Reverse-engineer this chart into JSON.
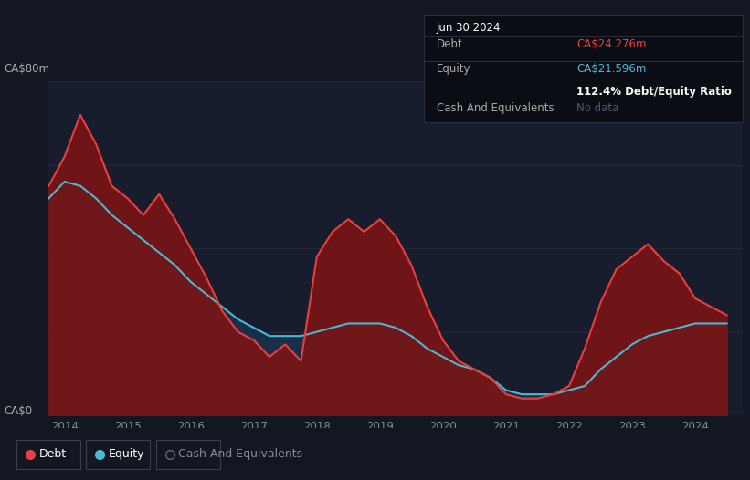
{
  "bg_color": "#131722",
  "plot_bg_color": "#181d2d",
  "grid_color": "#252a3a",
  "debt_color": "#e84040",
  "equity_color": "#4db8d4",
  "debt_fill": "#7a1515",
  "equity_fill": "#1a2e4a",
  "ylabel_top": "CA$80m",
  "ylabel_bottom": "CA$0",
  "title_box_date": "Jun 30 2024",
  "title_box_debt_label": "Debt",
  "title_box_debt_value": "CA$24.276m",
  "title_box_equity_label": "Equity",
  "title_box_equity_value": "CA$21.596m",
  "title_box_ratio": "112.4% Debt/Equity Ratio",
  "title_box_cash_label": "Cash And Equivalents",
  "title_box_cash_value": "No data",
  "legend_debt": "Debt",
  "legend_equity": "Equity",
  "legend_cash": "Cash And Equivalents",
  "years": [
    2013.75,
    2014.0,
    2014.25,
    2014.5,
    2014.75,
    2015.0,
    2015.25,
    2015.5,
    2015.75,
    2016.0,
    2016.25,
    2016.5,
    2016.75,
    2017.0,
    2017.25,
    2017.5,
    2017.75,
    2018.0,
    2018.25,
    2018.5,
    2018.75,
    2019.0,
    2019.25,
    2019.5,
    2019.75,
    2020.0,
    2020.25,
    2020.5,
    2020.75,
    2021.0,
    2021.25,
    2021.5,
    2021.75,
    2022.0,
    2022.25,
    2022.5,
    2022.75,
    2023.0,
    2023.25,
    2023.5,
    2023.75,
    2024.0,
    2024.25,
    2024.5
  ],
  "debt": [
    55,
    62,
    72,
    65,
    55,
    52,
    48,
    53,
    47,
    40,
    33,
    25,
    20,
    18,
    14,
    17,
    13,
    38,
    44,
    47,
    44,
    47,
    43,
    36,
    26,
    18,
    13,
    11,
    9,
    5,
    4,
    4,
    5,
    7,
    16,
    27,
    35,
    38,
    41,
    37,
    34,
    28,
    26,
    24
  ],
  "equity": [
    52,
    56,
    55,
    52,
    48,
    45,
    42,
    39,
    36,
    32,
    29,
    26,
    23,
    21,
    19,
    19,
    19,
    20,
    21,
    22,
    22,
    22,
    21,
    19,
    16,
    14,
    12,
    11,
    9,
    6,
    5,
    5,
    5,
    6,
    7,
    11,
    14,
    17,
    19,
    20,
    21,
    22,
    22,
    22
  ],
  "x_tick_years": [
    2014,
    2015,
    2016,
    2017,
    2018,
    2019,
    2020,
    2021,
    2022,
    2023,
    2024
  ],
  "x_min": 2013.75,
  "x_max": 2024.75,
  "y_min": 0,
  "y_max": 80,
  "y_grid": [
    0,
    20,
    40,
    60,
    80
  ]
}
